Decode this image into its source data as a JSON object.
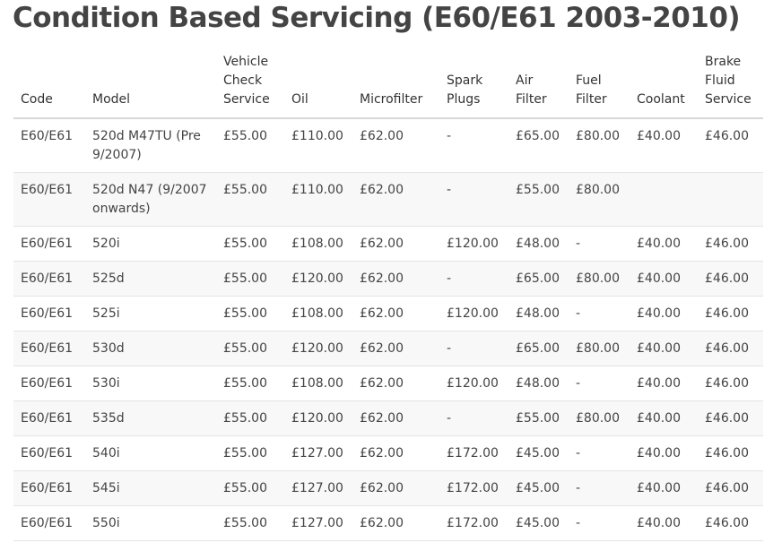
{
  "page": {
    "title": "Condition Based Servicing (E60/E61 2003-2010)"
  },
  "table": {
    "headers": [
      "Code",
      "Model",
      "Vehicle\nCheck\nService",
      "Oil",
      "Microfilter",
      "Spark\nPlugs",
      "Air\nFilter",
      "Fuel\nFilter",
      "Coolant",
      "Brake\nFluid\nService"
    ],
    "rows": [
      [
        "E60/E61",
        "520d M47TU (Pre 9/2007)",
        "£55.00",
        "£110.00",
        "£62.00",
        "-",
        "£65.00",
        "£80.00",
        "£40.00",
        "£46.00"
      ],
      [
        "E60/E61",
        "520d N47 (9/2007 onwards)",
        "£55.00",
        "£110.00",
        "£62.00",
        "-",
        "£55.00",
        "£80.00",
        "",
        ""
      ],
      [
        "E60/E61",
        "520i",
        "£55.00",
        "£108.00",
        "£62.00",
        "£120.00",
        "£48.00",
        "-",
        "£40.00",
        "£46.00"
      ],
      [
        "E60/E61",
        "525d",
        "£55.00",
        "£120.00",
        "£62.00",
        "-",
        "£65.00",
        "£80.00",
        "£40.00",
        "£46.00"
      ],
      [
        "E60/E61",
        "525i",
        "£55.00",
        "£108.00",
        "£62.00",
        "£120.00",
        "£48.00",
        "-",
        "£40.00",
        "£46.00"
      ],
      [
        "E60/E61",
        "530d",
        "£55.00",
        "£120.00",
        "£62.00",
        "-",
        "£65.00",
        "£80.00",
        "£40.00",
        "£46.00"
      ],
      [
        "E60/E61",
        "530i",
        "£55.00",
        "£108.00",
        "£62.00",
        "£120.00",
        "£48.00",
        "-",
        "£40.00",
        "£46.00"
      ],
      [
        "E60/E61",
        "535d",
        "£55.00",
        "£120.00",
        "£62.00",
        "-",
        "£55.00",
        "£80.00",
        "£40.00",
        "£46.00"
      ],
      [
        "E60/E61",
        "540i",
        "£55.00",
        "£127.00",
        "£62.00",
        "£172.00",
        "£45.00",
        "-",
        "£40.00",
        "£46.00"
      ],
      [
        "E60/E61",
        "545i",
        "£55.00",
        "£127.00",
        "£62.00",
        "£172.00",
        "£45.00",
        "-",
        "£40.00",
        "£46.00"
      ],
      [
        "E60/E61",
        "550i",
        "£55.00",
        "£127.00",
        "£62.00",
        "£172.00",
        "£45.00",
        "-",
        "£40.00",
        "£46.00"
      ]
    ]
  }
}
